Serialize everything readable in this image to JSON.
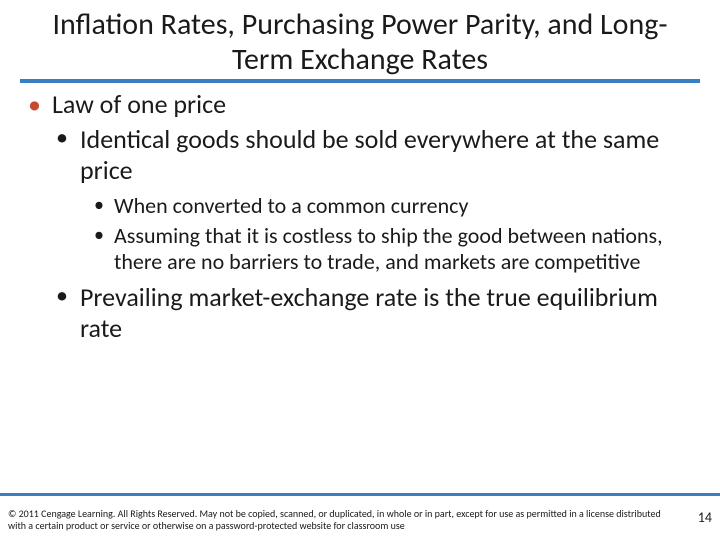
{
  "title": "Inflation Rates, Purchasing Power Parity, and Long-Term Exchange Rates",
  "colors": {
    "accent_blue": "#3a7fc4",
    "bullet_top": "#c94a2f",
    "text": "#1a1a1a",
    "background": "#ffffff"
  },
  "typography": {
    "title_fontsize": 30,
    "lvl1_fontsize": 26,
    "lvl2_fontsize": 26,
    "lvl3_fontsize": 22,
    "copyright_fontsize": 10,
    "pagenum_fontsize": 14
  },
  "bullets": {
    "lvl1": [
      {
        "text": "Law of one price"
      }
    ],
    "lvl2_a": [
      {
        "text": "Identical goods should be sold everywhere at the same price"
      }
    ],
    "lvl3": [
      {
        "text": "When converted to a common currency"
      },
      {
        "text": "Assuming that it is costless to ship the good between nations, there are no barriers to trade, and markets are competitive"
      }
    ],
    "lvl2_b": [
      {
        "text": "Prevailing market-exchange rate is the true equilibrium rate"
      }
    ]
  },
  "copyright": "© 2011 Cengage Learning. All Rights Reserved. May not be copied, scanned, or duplicated, in whole or in part, except for use as permitted in a license distributed with a certain product or service or otherwise on a password-protected website for classroom use",
  "page_number": "14"
}
